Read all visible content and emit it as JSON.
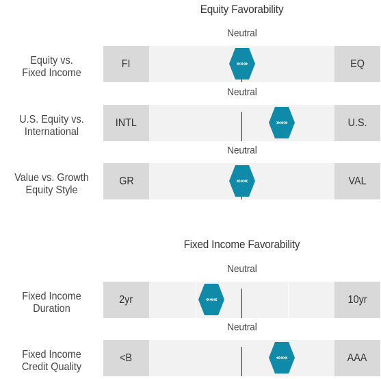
{
  "chart_data": {
    "type": "table",
    "sections": [
      {
        "title": "Equity Favorability",
        "rows": [
          {
            "label": "Equity vs.\nFixed Income",
            "left": "FI",
            "right": "EQ",
            "neutral_label": "Neutral",
            "position": 0.0,
            "arrows": "»»»"
          },
          {
            "label": "U.S. Equity vs.\nInternational",
            "left": "INTL",
            "right": "U.S.",
            "neutral_label": "Neutral",
            "position": 0.43,
            "arrows": "»»»"
          },
          {
            "label": "Value vs. Growth\nEquity Style",
            "left": "GR",
            "right": "VAL",
            "neutral_label": "Neutral",
            "position": 0.0,
            "arrows": "«««"
          }
        ]
      },
      {
        "title": "Fixed Income Favorability",
        "rows": [
          {
            "label": "Fixed Income\nDuration",
            "left": "2yr",
            "right": "10yr",
            "neutral_label": "Neutral",
            "position": -0.33,
            "arrows": "«««",
            "show_quarter_dividers": true
          },
          {
            "label": "Fixed Income\nCredit Quality",
            "left": "<B",
            "right": "AAA",
            "neutral_label": "Neutral",
            "position": 0.43,
            "arrows": "«««"
          }
        ]
      }
    ],
    "scale": [
      -1,
      1
    ],
    "marker_color": "#0f8aa8"
  }
}
